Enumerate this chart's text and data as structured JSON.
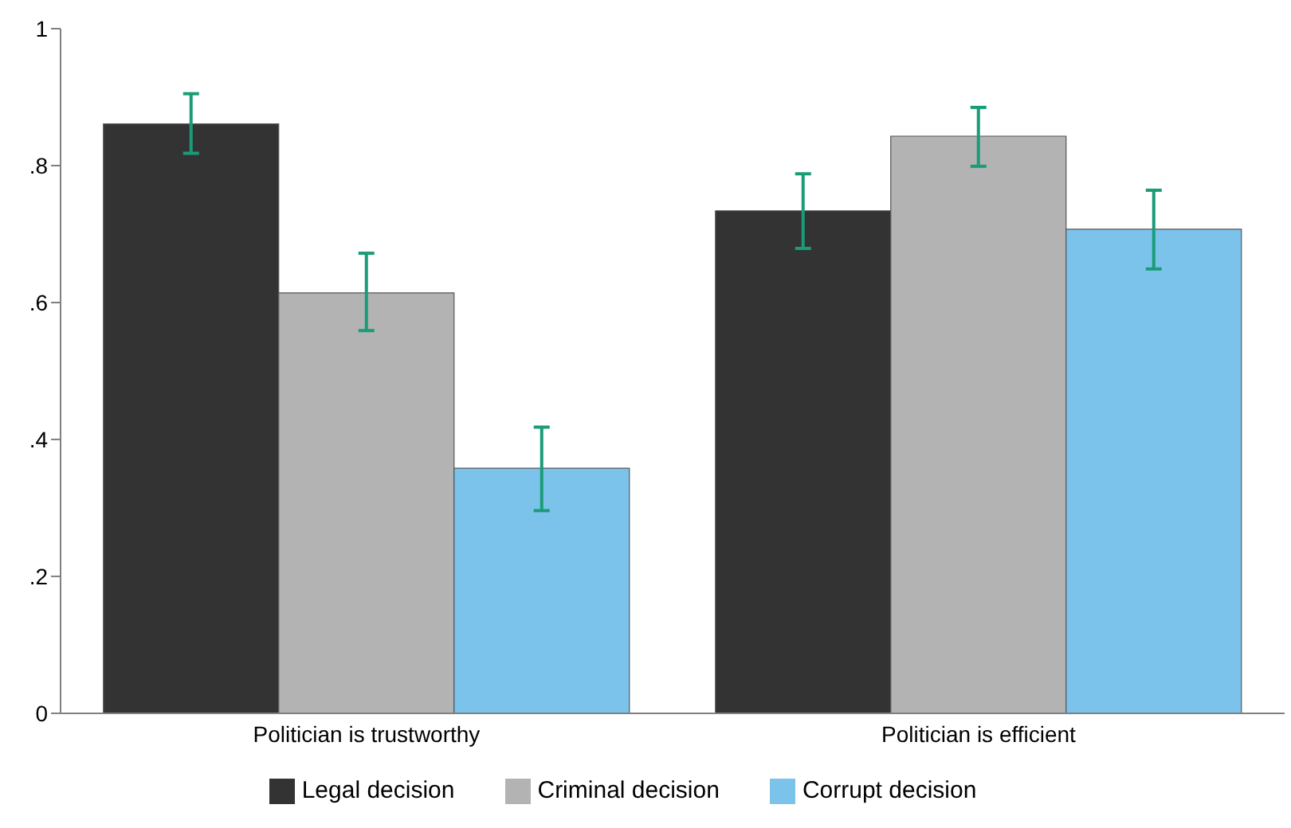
{
  "chart_data": {
    "type": "bar",
    "categories": [
      "Politician is trustworthy",
      "Politician is efficient"
    ],
    "series": [
      {
        "name": "Legal decision",
        "color": "#333333",
        "values": [
          0.861,
          0.734
        ],
        "errors": [
          [
            0.818,
            0.905
          ],
          [
            0.679,
            0.788
          ]
        ]
      },
      {
        "name": "Criminal decision",
        "color": "#b3b3b3",
        "values": [
          0.614,
          0.843
        ],
        "errors": [
          [
            0.559,
            0.672
          ],
          [
            0.799,
            0.885
          ]
        ]
      },
      {
        "name": "Corrupt decision",
        "color": "#7bc3ea",
        "values": [
          0.358,
          0.707
        ],
        "errors": [
          [
            0.296,
            0.418
          ],
          [
            0.649,
            0.764
          ]
        ]
      }
    ],
    "ylim": [
      0,
      1
    ],
    "yticks": [
      0,
      {
        "value": 0.2,
        "label": ".2"
      },
      {
        "value": 0.4,
        "label": ".4"
      },
      {
        "value": 0.6,
        "label": ".6"
      },
      {
        "value": 0.8,
        "label": ".8"
      },
      1
    ],
    "grid": false,
    "legend": "bottom"
  }
}
